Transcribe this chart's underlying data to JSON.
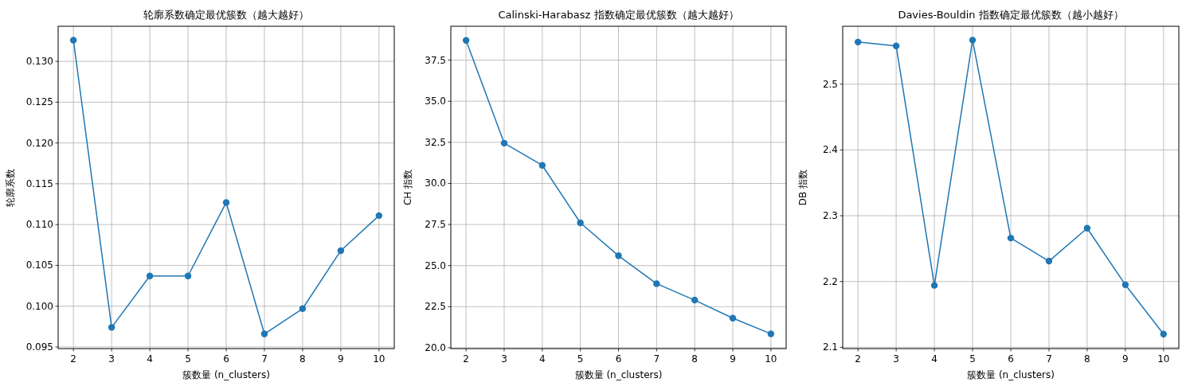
{
  "chart_data": [
    {
      "type": "line",
      "title": "轮廓系数确定最优簇数（越大越好）",
      "xlabel": "簇数量 (n_clusters)",
      "ylabel": "轮廓系数",
      "x": [
        2,
        3,
        4,
        5,
        6,
        7,
        8,
        9,
        10
      ],
      "series": [
        {
          "color": "#1f77b4",
          "values": [
            0.1326,
            0.0974,
            0.1037,
            0.1037,
            0.1127,
            0.0966,
            0.0997,
            0.1068,
            0.1111
          ]
        }
      ],
      "xlim": [
        1.6,
        10.4
      ],
      "ylim": [
        0.0948,
        0.1343
      ],
      "xticks": [
        2,
        3,
        4,
        5,
        6,
        7,
        8,
        9,
        10
      ],
      "yticks": [
        {
          "value": 0.095,
          "label": "0.095"
        },
        {
          "value": 0.1,
          "label": "0.100"
        },
        {
          "value": 0.105,
          "label": "0.105"
        },
        {
          "value": 0.11,
          "label": "0.110"
        },
        {
          "value": 0.115,
          "label": "0.115"
        },
        {
          "value": 0.12,
          "label": "0.120"
        },
        {
          "value": 0.125,
          "label": "0.125"
        },
        {
          "value": 0.13,
          "label": "0.130"
        }
      ],
      "grid": true,
      "marker": "circle"
    },
    {
      "type": "line",
      "title": "Calinski-Harabasz 指数确定最优簇数（越大越好）",
      "xlabel": "簇数量 (n_clusters)",
      "ylabel": "CH 指数",
      "x": [
        2,
        3,
        4,
        5,
        6,
        7,
        8,
        9,
        10
      ],
      "series": [
        {
          "color": "#1f77b4",
          "values": [
            38.7,
            32.45,
            31.1,
            27.6,
            25.6,
            23.9,
            22.9,
            21.8,
            20.85
          ]
        }
      ],
      "xlim": [
        1.6,
        10.4
      ],
      "ylim": [
        19.95,
        39.56
      ],
      "xticks": [
        2,
        3,
        4,
        5,
        6,
        7,
        8,
        9,
        10
      ],
      "yticks": [
        {
          "value": 20,
          "label": "20.0"
        },
        {
          "value": 22.5,
          "label": "22.5"
        },
        {
          "value": 25,
          "label": "25.0"
        },
        {
          "value": 27.5,
          "label": "27.5"
        },
        {
          "value": 30,
          "label": "30.0"
        },
        {
          "value": 32.5,
          "label": "32.5"
        },
        {
          "value": 35,
          "label": "35.0"
        },
        {
          "value": 37.5,
          "label": "37.5"
        }
      ],
      "grid": true,
      "marker": "circle"
    },
    {
      "type": "line",
      "title": "Davies-Bouldin 指数确定最优簇数（越小越好）",
      "xlabel": "簇数量 (n_clusters)",
      "ylabel": "DB 指数",
      "x": [
        2,
        3,
        4,
        5,
        6,
        7,
        8,
        9,
        10
      ],
      "series": [
        {
          "color": "#1f77b4",
          "values": [
            2.564,
            2.558,
            2.194,
            2.567,
            2.266,
            2.231,
            2.281,
            2.195,
            2.12
          ]
        }
      ],
      "xlim": [
        1.6,
        10.4
      ],
      "ylim": [
        2.098,
        2.588
      ],
      "xticks": [
        2,
        3,
        4,
        5,
        6,
        7,
        8,
        9,
        10
      ],
      "yticks": [
        2.1,
        2.2,
        2.3,
        2.4,
        2.5
      ],
      "grid": true,
      "marker": "circle"
    }
  ]
}
